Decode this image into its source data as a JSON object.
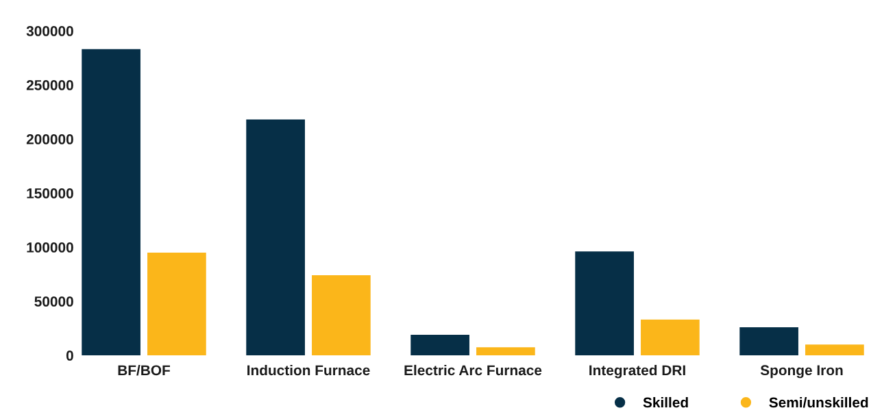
{
  "chart_data": {
    "type": "bar",
    "categories": [
      "BF/BOF",
      "Induction Furnace",
      "Electric Arc Furnace",
      "Integrated DRI",
      "Sponge Iron"
    ],
    "series": [
      {
        "name": "Skilled",
        "color": "#062f47",
        "values": [
          283000,
          218000,
          19000,
          96000,
          26000
        ]
      },
      {
        "name": "Semi/unskilled",
        "color": "#fbb61a",
        "values": [
          95000,
          74000,
          7500,
          33000,
          10000
        ]
      }
    ],
    "ylim": [
      0,
      300000
    ],
    "yticks": [
      0,
      50000,
      100000,
      150000,
      200000,
      250000,
      300000
    ],
    "grid": false,
    "legend": "bottom right"
  }
}
